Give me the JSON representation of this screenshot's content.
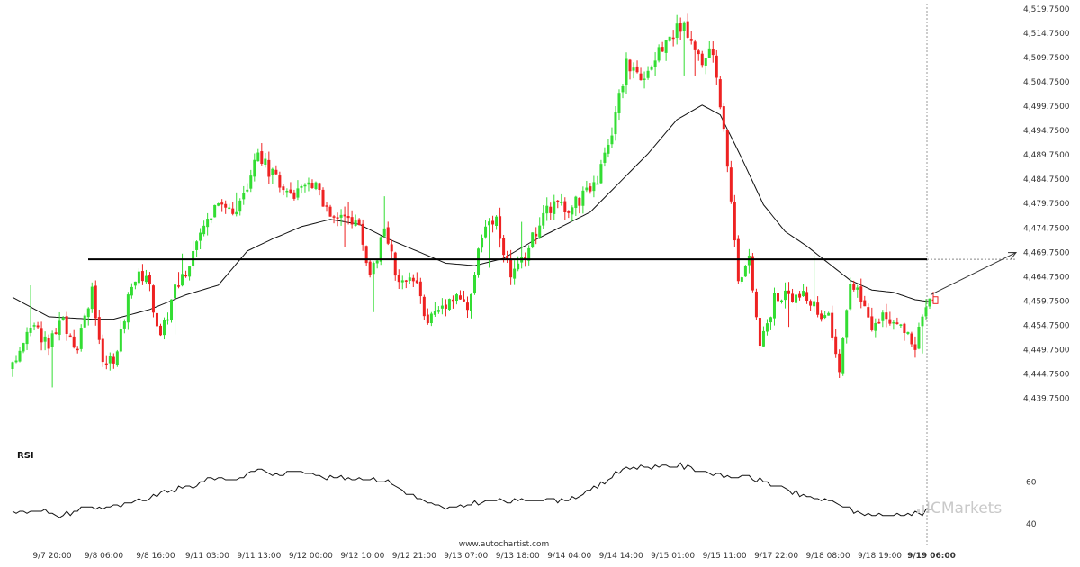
{
  "chart_data": {
    "type": "candlestick",
    "price_panel": {
      "y_ticks": [
        "4,519.7500",
        "4,514.7500",
        "4,509.7500",
        "4,504.7500",
        "4,499.7500",
        "4,494.7500",
        "4,489.7500",
        "4,484.7500",
        "4,479.7500",
        "4,474.7500",
        "4,469.7500",
        "4,464.7500",
        "4,459.7500",
        "4,454.7500",
        "4,449.7500",
        "4,444.7500",
        "4,439.7500"
      ],
      "y_tick_values": [
        4519.75,
        4514.75,
        4509.75,
        4504.75,
        4499.75,
        4494.75,
        4489.75,
        4484.75,
        4479.75,
        4474.75,
        4469.75,
        4464.75,
        4459.75,
        4454.75,
        4449.75,
        4444.75,
        4439.75
      ],
      "ylim": [
        4436.5,
        4520.5
      ],
      "x_ticks": [
        "9/7 20:00",
        "9/8 06:00",
        "9/8 16:00",
        "9/11 03:00",
        "9/11 13:00",
        "9/12 00:00",
        "9/12 10:00",
        "9/12 21:00",
        "9/13 07:00",
        "9/13 18:00",
        "9/14 04:00",
        "9/14 14:00",
        "9/15 01:00",
        "9/15 11:00",
        "9/17 22:00",
        "9/18 08:00",
        "9/18 19:00",
        "9/19 06:00"
      ],
      "level": 4468.3,
      "up_color": "#33dd33",
      "down_color": "#ee2222",
      "anchors": [
        [
          0,
          4446.0
        ],
        [
          5,
          4455.5
        ],
        [
          10,
          4450.5
        ],
        [
          14,
          4456.0
        ],
        [
          18,
          4449.5
        ],
        [
          22,
          4463.0
        ],
        [
          25,
          4446.5
        ],
        [
          29,
          4449.0
        ],
        [
          33,
          4464.0
        ],
        [
          37,
          4465.5
        ],
        [
          41,
          4452.0
        ],
        [
          45,
          4462.5
        ],
        [
          49,
          4466.5
        ],
        [
          53,
          4475.0
        ],
        [
          57,
          4481.0
        ],
        [
          61,
          4478.0
        ],
        [
          64,
          4482.0
        ],
        [
          68,
          4490.0
        ],
        [
          72,
          4485.5
        ],
        [
          76,
          4481.0
        ],
        [
          80,
          4482.0
        ],
        [
          84,
          4485.0
        ],
        [
          88,
          4476.0
        ],
        [
          92,
          4478.5
        ],
        [
          96,
          4475.0
        ],
        [
          99,
          4465.0
        ],
        [
          103,
          4474.0
        ],
        [
          107,
          4463.0
        ],
        [
          111,
          4464.0
        ],
        [
          115,
          4456.0
        ],
        [
          119,
          4459.0
        ],
        [
          123,
          4461.5
        ],
        [
          126,
          4457.5
        ],
        [
          130,
          4473.5
        ],
        [
          134,
          4476.0
        ],
        [
          138,
          4464.5
        ],
        [
          142,
          4469.5
        ],
        [
          146,
          4476.0
        ],
        [
          150,
          4480.0
        ],
        [
          154,
          4478.0
        ],
        [
          158,
          4481.5
        ],
        [
          162,
          4485.0
        ],
        [
          166,
          4494.0
        ],
        [
          170,
          4509.0
        ],
        [
          174,
          4506.0
        ],
        [
          178,
          4509.5
        ],
        [
          182,
          4514.0
        ],
        [
          185,
          4516.5
        ],
        [
          188,
          4514.0
        ],
        [
          191,
          4508.0
        ],
        [
          193,
          4512.0
        ],
        [
          195,
          4506.0
        ],
        [
          197,
          4496.0
        ],
        [
          199,
          4480.0
        ],
        [
          201,
          4465.0
        ],
        [
          204,
          4468.0
        ],
        [
          207,
          4450.5
        ],
        [
          211,
          4460.0
        ],
        [
          215,
          4461.0
        ],
        [
          219,
          4460.5
        ],
        [
          222,
          4459.0
        ],
        [
          226,
          4456.0
        ],
        [
          229,
          4444.5
        ],
        [
          232,
          4463.5
        ],
        [
          235,
          4461.0
        ],
        [
          238,
          4453.5
        ],
        [
          241,
          4456.5
        ],
        [
          244,
          4455.0
        ],
        [
          247,
          4453.5
        ],
        [
          250,
          4451.0
        ],
        [
          253,
          4459.5
        ],
        [
          255,
          4460.5
        ]
      ],
      "ma_anchors": [
        [
          0,
          4460.5
        ],
        [
          10,
          4456.5
        ],
        [
          22,
          4456.0
        ],
        [
          28,
          4456.0
        ],
        [
          38,
          4458.0
        ],
        [
          48,
          4461.0
        ],
        [
          57,
          4463.0
        ],
        [
          65,
          4470.0
        ],
        [
          72,
          4472.5
        ],
        [
          80,
          4475.0
        ],
        [
          88,
          4476.5
        ],
        [
          96,
          4475.5
        ],
        [
          104,
          4472.5
        ],
        [
          112,
          4470.0
        ],
        [
          120,
          4467.5
        ],
        [
          128,
          4467.0
        ],
        [
          136,
          4468.5
        ],
        [
          144,
          4472.0
        ],
        [
          152,
          4475.0
        ],
        [
          160,
          4478.0
        ],
        [
          168,
          4484.0
        ],
        [
          176,
          4490.0
        ],
        [
          184,
          4497.0
        ],
        [
          191,
          4500.0
        ],
        [
          196,
          4498.0
        ],
        [
          202,
          4489.0
        ],
        [
          208,
          4479.5
        ],
        [
          214,
          4474.0
        ],
        [
          220,
          4471.0
        ],
        [
          226,
          4467.5
        ],
        [
          232,
          4464.0
        ],
        [
          238,
          4462.0
        ],
        [
          244,
          4461.5
        ],
        [
          250,
          4460.0
        ],
        [
          255,
          4459.5
        ]
      ]
    },
    "rsi_panel": {
      "label": "RSI",
      "y_ticks": [
        "60",
        "40"
      ],
      "y_tick_values": [
        60,
        40
      ],
      "ylim": [
        34,
        76
      ],
      "anchors": [
        [
          0,
          45
        ],
        [
          8,
          47
        ],
        [
          12,
          43
        ],
        [
          20,
          48
        ],
        [
          28,
          48
        ],
        [
          36,
          51
        ],
        [
          42,
          55
        ],
        [
          50,
          58
        ],
        [
          55,
          62
        ],
        [
          62,
          61
        ],
        [
          68,
          66
        ],
        [
          74,
          63
        ],
        [
          80,
          66
        ],
        [
          86,
          62
        ],
        [
          96,
          62
        ],
        [
          104,
          60
        ],
        [
          110,
          54
        ],
        [
          116,
          49
        ],
        [
          122,
          47
        ],
        [
          128,
          50
        ],
        [
          134,
          51
        ],
        [
          140,
          51
        ],
        [
          146,
          52
        ],
        [
          152,
          51
        ],
        [
          158,
          54
        ],
        [
          164,
          60
        ],
        [
          170,
          67
        ],
        [
          178,
          67
        ],
        [
          184,
          68
        ],
        [
          190,
          66
        ],
        [
          196,
          63
        ],
        [
          204,
          62
        ],
        [
          210,
          59
        ],
        [
          216,
          55
        ],
        [
          222,
          52
        ],
        [
          228,
          50
        ],
        [
          234,
          45
        ],
        [
          240,
          44
        ],
        [
          246,
          45
        ],
        [
          252,
          45
        ],
        [
          255,
          47
        ]
      ]
    }
  },
  "header": {
    "rsi_label": "RSI"
  },
  "footer": {
    "source": "www.autochartist.com",
    "brand": "ICMarkets"
  }
}
